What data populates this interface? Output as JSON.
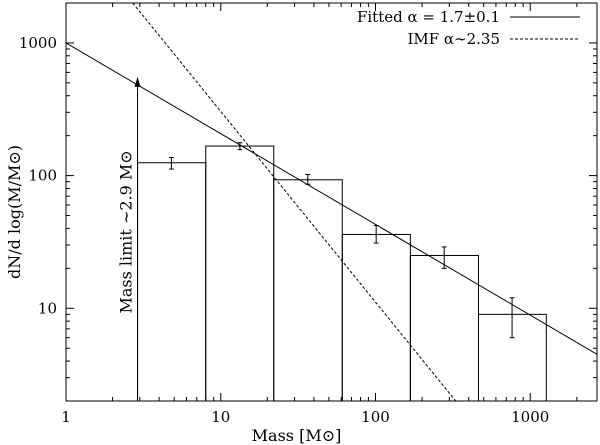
{
  "chart_data": {
    "type": "bar",
    "xscale": "log",
    "yscale": "log",
    "xlim": [
      1,
      2700
    ],
    "ylim": [
      2,
      2000
    ],
    "xlabel": "Mass [M⊙]",
    "ylabel": "dN/d log(M/M⊙)",
    "xticks": [
      {
        "value": 1,
        "label": "1"
      },
      {
        "value": 10,
        "label": "10"
      },
      {
        "value": 100,
        "label": "100"
      },
      {
        "value": 1000,
        "label": "1000"
      }
    ],
    "yticks": [
      {
        "value": 10,
        "label": "10"
      },
      {
        "value": 100,
        "label": "100"
      },
      {
        "value": 1000,
        "label": "1000"
      }
    ],
    "bins": [
      {
        "x0": 2.9,
        "x1": 8.0,
        "value": 125,
        "err_low": 112,
        "err_high": 137,
        "center": 4.8
      },
      {
        "x0": 8.0,
        "x1": 22.0,
        "value": 167,
        "err_low": 157,
        "err_high": 177,
        "center": 13.3
      },
      {
        "x0": 22.0,
        "x1": 61.0,
        "value": 93,
        "err_low": 86,
        "err_high": 102,
        "center": 36.5
      },
      {
        "x0": 61.0,
        "x1": 168.0,
        "value": 36,
        "err_low": 31,
        "err_high": 42,
        "center": 101
      },
      {
        "x0": 168.0,
        "x1": 463.0,
        "value": 25,
        "err_low": 20,
        "err_high": 29,
        "center": 278
      },
      {
        "x0": 463.0,
        "x1": 1270.0,
        "value": 9,
        "err_low": 6,
        "err_high": 12,
        "center": 763
      }
    ],
    "series": [
      {
        "name": "Fitted α = 1.7±0.1",
        "style": "solid",
        "points": [
          [
            1,
            1000
          ],
          [
            2700,
            4.5
          ]
        ]
      },
      {
        "name": "IMF α∼2.35",
        "style": "dashed",
        "points": [
          [
            2.7,
            2000
          ],
          [
            330,
            2
          ]
        ]
      }
    ],
    "annotation": {
      "text": "Mass limit ∼2.9 M⊙",
      "x": 2.9,
      "y_from": 2,
      "y_to": 500
    },
    "legend": {
      "position": "top-right"
    },
    "colors": {
      "axes": "#000000",
      "bars": "#000000",
      "lines": "#000000",
      "background": "#ffffff"
    }
  }
}
